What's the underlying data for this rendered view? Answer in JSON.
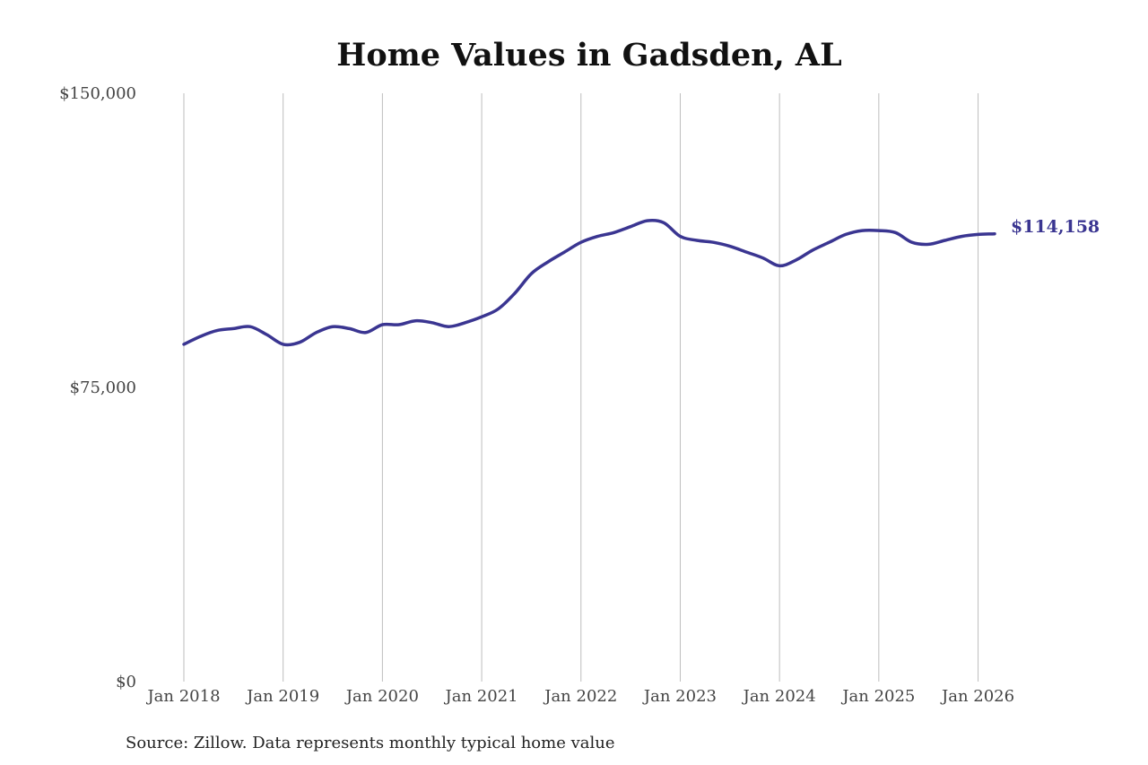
{
  "chart_data": {
    "type": "line",
    "title": "Home Values in Gadsden, AL",
    "xlabel": "",
    "ylabel": "",
    "source": "Source: Zillow. Data represents monthly typical home value",
    "xlim": [
      "2018-01",
      "2026-03"
    ],
    "ylim": [
      0,
      150000
    ],
    "grid": "vertical",
    "line_color": "#3a3591",
    "x_tick_labels": [
      {
        "label": "Jan 2018",
        "x": "2018-01"
      },
      {
        "label": "Jan 2019",
        "x": "2019-01"
      },
      {
        "label": "Jan 2020",
        "x": "2020-01"
      },
      {
        "label": "Jan 2021",
        "x": "2021-01"
      },
      {
        "label": "Jan 2022",
        "x": "2022-01"
      },
      {
        "label": "Jan 2023",
        "x": "2023-01"
      },
      {
        "label": "Jan 2024",
        "x": "2024-01"
      },
      {
        "label": "Jan 2025",
        "x": "2025-01"
      },
      {
        "label": "Jan 2026",
        "x": "2026-01"
      }
    ],
    "y_tick_labels": [
      {
        "label": "$150,000",
        "y": 150000
      },
      {
        "label": "$75,000",
        "y": 75000
      },
      {
        "label": "$0",
        "y": 0
      }
    ],
    "end_label": "$114,158",
    "series": [
      {
        "x": [
          "2018-01",
          "2018-03",
          "2018-05",
          "2018-07",
          "2018-09",
          "2018-11",
          "2019-01",
          "2019-03",
          "2019-05",
          "2019-07",
          "2019-09",
          "2019-11",
          "2020-01",
          "2020-03",
          "2020-05",
          "2020-07",
          "2020-09",
          "2020-11",
          "2021-01",
          "2021-03",
          "2021-05",
          "2021-07",
          "2021-09",
          "2021-11",
          "2022-01",
          "2022-03",
          "2022-05",
          "2022-07",
          "2022-09",
          "2022-11",
          "2023-01",
          "2023-03",
          "2023-05",
          "2023-07",
          "2023-09",
          "2023-11",
          "2024-01",
          "2024-03",
          "2024-05",
          "2024-07",
          "2024-09",
          "2024-11",
          "2025-01",
          "2025-03",
          "2025-05",
          "2025-07",
          "2025-09",
          "2025-11",
          "2026-01",
          "2026-03"
        ],
        "values": [
          86000,
          88000,
          89500,
          90000,
          90500,
          88500,
          86000,
          86500,
          89000,
          90500,
          90000,
          89000,
          91000,
          91000,
          92000,
          91500,
          90500,
          91500,
          93000,
          95000,
          99000,
          104000,
          107000,
          109500,
          112000,
          113500,
          114500,
          116000,
          117500,
          117000,
          113500,
          112500,
          112000,
          111000,
          109500,
          108000,
          106000,
          107500,
          110000,
          112000,
          114000,
          115000,
          115000,
          114500,
          112000,
          111500,
          112500,
          113500,
          114000,
          114158
        ]
      }
    ]
  }
}
